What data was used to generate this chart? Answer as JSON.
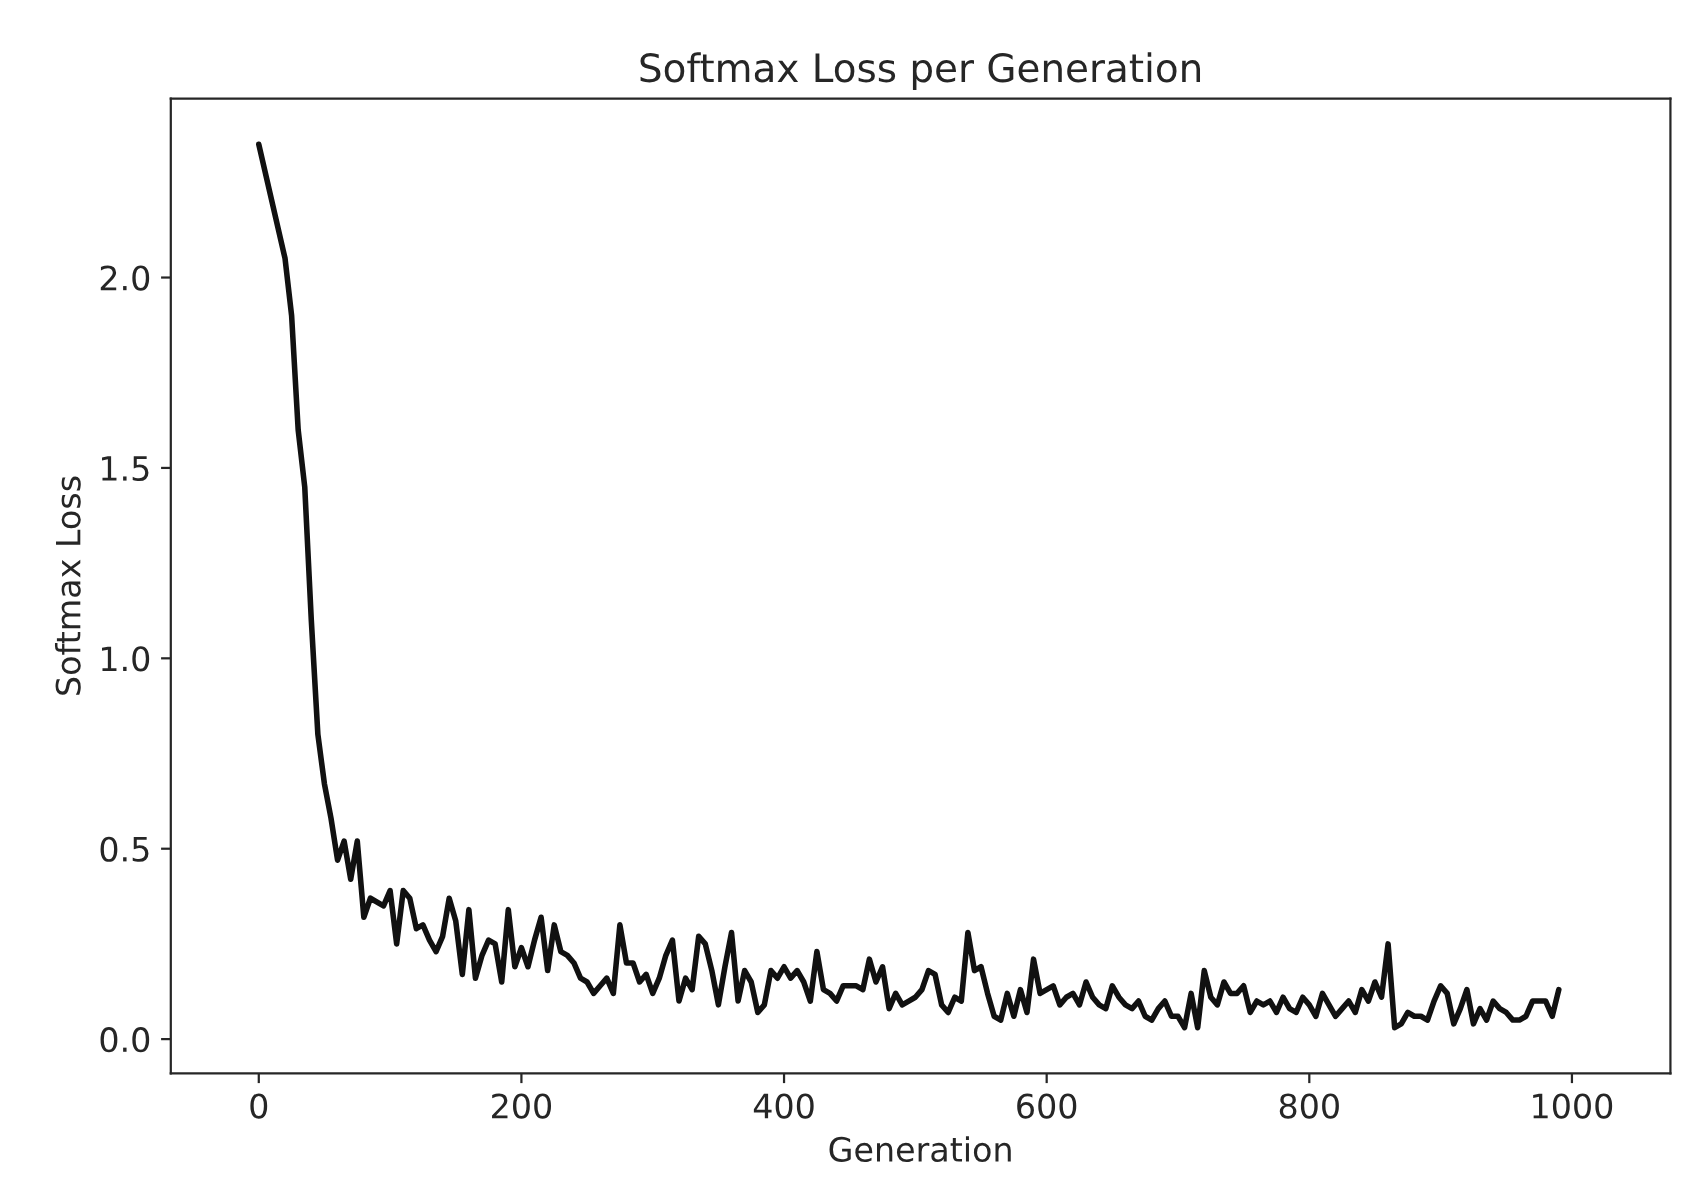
{
  "chart_data": {
    "type": "line",
    "title": "Softmax Loss per Generation",
    "xlabel": "Generation",
    "ylabel": "Softmax Loss",
    "x": [
      0,
      10,
      20,
      25,
      30,
      35,
      40,
      45,
      50,
      55,
      60,
      65,
      70,
      75,
      80,
      85,
      95,
      100,
      105,
      110,
      115,
      120,
      125,
      130,
      135,
      140,
      145,
      150,
      155,
      160,
      165,
      170,
      175,
      180,
      185,
      190,
      195,
      200,
      205,
      210,
      215,
      220,
      225,
      230,
      235,
      240,
      245,
      250,
      255,
      260,
      265,
      270,
      275,
      280,
      285,
      290,
      295,
      300,
      305,
      310,
      315,
      320,
      325,
      330,
      335,
      340,
      345,
      350,
      355,
      360,
      365,
      370,
      375,
      380,
      385,
      390,
      395,
      400,
      405,
      410,
      415,
      420,
      425,
      430,
      435,
      440,
      445,
      450,
      455,
      460,
      465,
      470,
      475,
      480,
      485,
      490,
      495,
      500,
      505,
      510,
      515,
      520,
      525,
      530,
      535,
      540,
      545,
      550,
      555,
      560,
      565,
      570,
      575,
      580,
      585,
      590,
      595,
      600,
      605,
      610,
      615,
      620,
      625,
      630,
      635,
      640,
      645,
      650,
      655,
      660,
      665,
      670,
      675,
      680,
      685,
      690,
      695,
      700,
      705,
      710,
      715,
      720,
      725,
      730,
      735,
      740,
      745,
      750,
      755,
      760,
      765,
      770,
      775,
      780,
      785,
      790,
      795,
      800,
      805,
      810,
      815,
      820,
      825,
      830,
      835,
      840,
      845,
      850,
      855,
      860,
      865,
      870,
      875,
      880,
      885,
      890,
      895,
      900,
      905,
      910,
      915,
      920,
      925,
      930,
      935,
      940,
      945,
      950,
      955,
      960,
      965,
      970,
      975,
      980,
      985,
      990
    ],
    "series": [
      {
        "color": "#111111",
        "values": [
          2.35,
          2.2,
          2.05,
          1.9,
          1.6,
          1.45,
          1.1,
          0.8,
          0.67,
          0.58,
          0.47,
          0.52,
          0.42,
          0.52,
          0.32,
          0.37,
          0.35,
          0.39,
          0.25,
          0.39,
          0.37,
          0.29,
          0.3,
          0.26,
          0.23,
          0.27,
          0.37,
          0.31,
          0.17,
          0.34,
          0.16,
          0.22,
          0.26,
          0.25,
          0.15,
          0.34,
          0.19,
          0.24,
          0.19,
          0.26,
          0.32,
          0.18,
          0.3,
          0.23,
          0.22,
          0.2,
          0.16,
          0.15,
          0.12,
          0.14,
          0.16,
          0.12,
          0.3,
          0.2,
          0.2,
          0.15,
          0.17,
          0.12,
          0.16,
          0.22,
          0.26,
          0.1,
          0.16,
          0.13,
          0.27,
          0.25,
          0.18,
          0.09,
          0.19,
          0.28,
          0.1,
          0.18,
          0.15,
          0.07,
          0.09,
          0.18,
          0.16,
          0.19,
          0.16,
          0.18,
          0.15,
          0.1,
          0.23,
          0.13,
          0.12,
          0.1,
          0.14,
          0.14,
          0.14,
          0.13,
          0.21,
          0.15,
          0.19,
          0.08,
          0.12,
          0.09,
          0.1,
          0.11,
          0.13,
          0.18,
          0.17,
          0.09,
          0.07,
          0.11,
          0.1,
          0.28,
          0.18,
          0.19,
          0.12,
          0.06,
          0.05,
          0.12,
          0.06,
          0.13,
          0.07,
          0.21,
          0.12,
          0.13,
          0.14,
          0.09,
          0.11,
          0.12,
          0.09,
          0.15,
          0.11,
          0.09,
          0.08,
          0.14,
          0.11,
          0.09,
          0.08,
          0.1,
          0.06,
          0.05,
          0.08,
          0.1,
          0.06,
          0.06,
          0.03,
          0.12,
          0.03,
          0.18,
          0.11,
          0.09,
          0.15,
          0.12,
          0.12,
          0.14,
          0.07,
          0.1,
          0.09,
          0.1,
          0.07,
          0.11,
          0.08,
          0.07,
          0.11,
          0.09,
          0.06,
          0.12,
          0.09,
          0.06,
          0.08,
          0.1,
          0.07,
          0.13,
          0.1,
          0.15,
          0.11,
          0.25,
          0.03,
          0.04,
          0.07,
          0.06,
          0.06,
          0.05,
          0.1,
          0.14,
          0.12,
          0.04,
          0.08,
          0.13,
          0.04,
          0.08,
          0.05,
          0.1,
          0.08,
          0.07,
          0.05,
          0.05,
          0.06,
          0.1,
          0.1,
          0.1,
          0.06,
          0.13
        ]
      }
    ],
    "xlim": [
      -67,
      1075
    ],
    "ylim": [
      -0.09,
      2.47
    ],
    "xticks": [
      0,
      200,
      400,
      600,
      800,
      1000
    ],
    "yticks": [
      {
        "value": 0,
        "label": "0.0"
      },
      {
        "value": 0.5,
        "label": "0.5"
      },
      {
        "value": 1,
        "label": "1.0"
      },
      {
        "value": 1.5,
        "label": "1.5"
      },
      {
        "value": 2,
        "label": "2.0"
      }
    ],
    "grid": false,
    "legend": false
  }
}
